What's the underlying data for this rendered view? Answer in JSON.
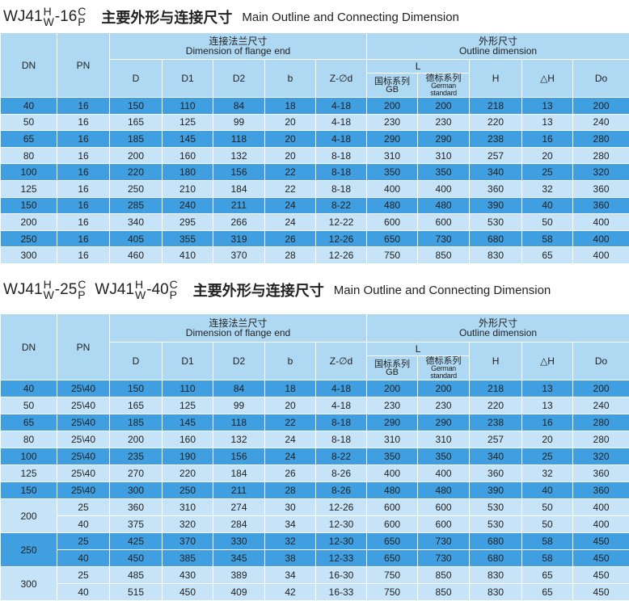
{
  "sections": [
    {
      "title": {
        "models": [
          {
            "base": "WJ41",
            "top": "H",
            "bottom": "W",
            "mid": "-16",
            "top2": "C",
            "bottom2": "P"
          }
        ],
        "cn": "主要外形与连接尺寸",
        "en": "Main Outline and Connecting Dimension"
      },
      "header": {
        "dn": "DN",
        "pn": "PN",
        "flange_cn": "连接法兰尺寸",
        "flange_en": "Dimension of flange end",
        "flange_cols": [
          "D",
          "D1",
          "D2",
          "b",
          "Z-∅d"
        ],
        "outline_cn": "外形尺寸",
        "outline_en": "Outline dimension",
        "l": "L",
        "gb_cn": "国标系列",
        "gb_en": "GB",
        "de_cn": "德标系列",
        "de_en": "German standard",
        "outline_cols": [
          "H",
          "△H",
          "Do"
        ]
      },
      "groups": [
        {
          "dn": "40",
          "rows": [
            [
              "16",
              "150",
              "110",
              "84",
              "18",
              "4-18",
              "200",
              "200",
              "218",
              "13",
              "200"
            ]
          ]
        },
        {
          "dn": "50",
          "rows": [
            [
              "16",
              "165",
              "125",
              "99",
              "20",
              "4-18",
              "230",
              "230",
              "220",
              "13",
              "240"
            ]
          ]
        },
        {
          "dn": "65",
          "rows": [
            [
              "16",
              "185",
              "145",
              "118",
              "20",
              "4-18",
              "290",
              "290",
              "238",
              "16",
              "280"
            ]
          ]
        },
        {
          "dn": "80",
          "rows": [
            [
              "16",
              "200",
              "160",
              "132",
              "20",
              "8-18",
              "310",
              "310",
              "257",
              "20",
              "280"
            ]
          ]
        },
        {
          "dn": "100",
          "rows": [
            [
              "16",
              "220",
              "180",
              "156",
              "22",
              "8-18",
              "350",
              "350",
              "340",
              "25",
              "320"
            ]
          ]
        },
        {
          "dn": "125",
          "rows": [
            [
              "16",
              "250",
              "210",
              "184",
              "22",
              "8-18",
              "400",
              "400",
              "360",
              "32",
              "360"
            ]
          ]
        },
        {
          "dn": "150",
          "rows": [
            [
              "16",
              "285",
              "240",
              "211",
              "24",
              "8-22",
              "480",
              "480",
              "390",
              "40",
              "360"
            ]
          ]
        },
        {
          "dn": "200",
          "rows": [
            [
              "16",
              "340",
              "295",
              "266",
              "24",
              "12-22",
              "600",
              "600",
              "530",
              "50",
              "400"
            ]
          ]
        },
        {
          "dn": "250",
          "rows": [
            [
              "16",
              "405",
              "355",
              "319",
              "26",
              "12-26",
              "650",
              "730",
              "680",
              "58",
              "400"
            ]
          ]
        },
        {
          "dn": "300",
          "rows": [
            [
              "16",
              "460",
              "410",
              "370",
              "28",
              "12-26",
              "750",
              "850",
              "830",
              "65",
              "400"
            ]
          ]
        }
      ]
    },
    {
      "title": {
        "models": [
          {
            "base": "WJ41",
            "top": "H",
            "bottom": "W",
            "mid": "-25",
            "top2": "C",
            "bottom2": "P"
          },
          {
            "base": "WJ41",
            "top": "H",
            "bottom": "W",
            "mid": "-40",
            "top2": "C",
            "bottom2": "P"
          }
        ],
        "cn": "主要外形与连接尺寸",
        "en": "Main Outline and Connecting Dimension"
      },
      "header": {
        "dn": "DN",
        "pn": "PN",
        "flange_cn": "连接法兰尺寸",
        "flange_en": "Dimension of flange end",
        "flange_cols": [
          "D",
          "D1",
          "D2",
          "b",
          "Z-∅d"
        ],
        "outline_cn": "外形尺寸",
        "outline_en": "Outline dimension",
        "l": "L",
        "gb_cn": "国标系列",
        "gb_en": "GB",
        "de_cn": "德标系列",
        "de_en": "German standard",
        "outline_cols": [
          "H",
          "△H",
          "Do"
        ]
      },
      "groups": [
        {
          "dn": "40",
          "rows": [
            [
              "25\\40",
              "150",
              "110",
              "84",
              "18",
              "4-18",
              "200",
              "200",
              "218",
              "13",
              "200"
            ]
          ]
        },
        {
          "dn": "50",
          "rows": [
            [
              "25\\40",
              "165",
              "125",
              "99",
              "20",
              "4-18",
              "230",
              "230",
              "220",
              "13",
              "240"
            ]
          ]
        },
        {
          "dn": "65",
          "rows": [
            [
              "25\\40",
              "185",
              "145",
              "118",
              "22",
              "8-18",
              "290",
              "290",
              "238",
              "16",
              "280"
            ]
          ]
        },
        {
          "dn": "80",
          "rows": [
            [
              "25\\40",
              "200",
              "160",
              "132",
              "24",
              "8-18",
              "310",
              "310",
              "257",
              "20",
              "280"
            ]
          ]
        },
        {
          "dn": "100",
          "rows": [
            [
              "25\\40",
              "235",
              "190",
              "156",
              "24",
              "8-22",
              "350",
              "350",
              "340",
              "25",
              "320"
            ]
          ]
        },
        {
          "dn": "125",
          "rows": [
            [
              "25\\40",
              "270",
              "220",
              "184",
              "26",
              "8-26",
              "400",
              "400",
              "360",
              "32",
              "360"
            ]
          ]
        },
        {
          "dn": "150",
          "rows": [
            [
              "25\\40",
              "300",
              "250",
              "211",
              "28",
              "8-26",
              "480",
              "480",
              "390",
              "40",
              "360"
            ]
          ]
        },
        {
          "dn": "200",
          "rows": [
            [
              "25",
              "360",
              "310",
              "274",
              "30",
              "12-26",
              "600",
              "600",
              "530",
              "50",
              "400"
            ],
            [
              "40",
              "375",
              "320",
              "284",
              "34",
              "12-30",
              "600",
              "600",
              "530",
              "50",
              "400"
            ]
          ]
        },
        {
          "dn": "250",
          "rows": [
            [
              "25",
              "425",
              "370",
              "330",
              "32",
              "12-30",
              "650",
              "730",
              "680",
              "58",
              "450"
            ],
            [
              "40",
              "450",
              "385",
              "345",
              "38",
              "12-33",
              "650",
              "730",
              "680",
              "58",
              "450"
            ]
          ]
        },
        {
          "dn": "300",
          "rows": [
            [
              "25",
              "485",
              "430",
              "389",
              "34",
              "16-30",
              "750",
              "850",
              "830",
              "65",
              "450"
            ],
            [
              "40",
              "515",
              "450",
              "409",
              "42",
              "16-33",
              "750",
              "850",
              "830",
              "65",
              "450"
            ]
          ]
        }
      ]
    }
  ]
}
